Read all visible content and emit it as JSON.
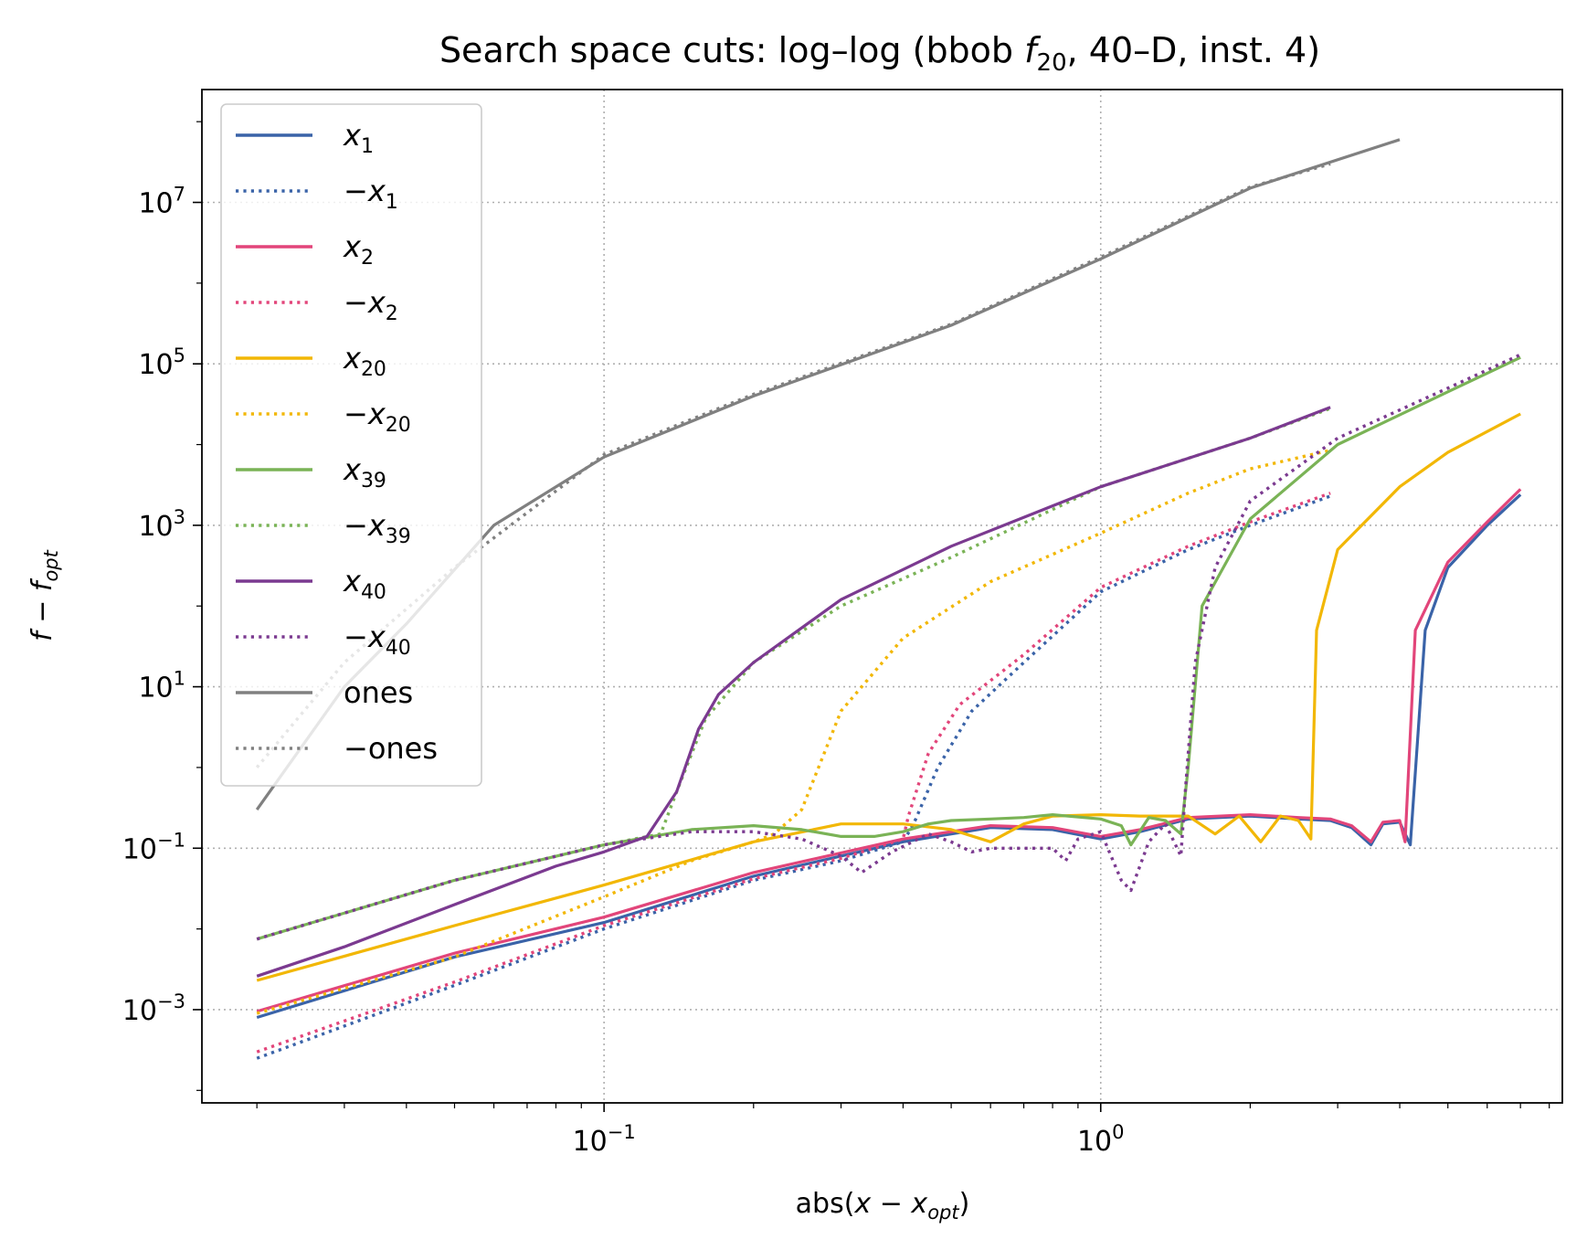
{
  "chart_data": {
    "type": "line",
    "title": "Search space cuts: log–log (bbob f20, 40–D, inst. 4)",
    "title_parts": {
      "pre": "Search space cuts: log–log (bbob ",
      "fn": "f",
      "fn_sub": "20",
      "post": ", 40–D, inst. 4)"
    },
    "xlabel": "abs(x − x_opt)",
    "xlabel_parts": {
      "pre": "abs(",
      "var": "x",
      "op": " − ",
      "var2": "x",
      "sub": "opt",
      "post": ")"
    },
    "ylabel": "f − f_opt",
    "ylabel_parts": {
      "var": "f",
      "op": " − ",
      "var2": "f",
      "sub": "opt"
    },
    "xscale": "log",
    "yscale": "log",
    "xlim": [
      0.0155,
      8.5
    ],
    "ylim": [
      7e-05,
      250000000
    ],
    "grid": true,
    "legend_position": "upper-left",
    "x_ticks": [
      {
        "value": 0.1,
        "base": "10",
        "exp": "−1"
      },
      {
        "value": 1,
        "base": "10",
        "exp": "0"
      }
    ],
    "y_ticks": [
      {
        "value": 0.001,
        "base": "10",
        "exp": "−3"
      },
      {
        "value": 0.1,
        "base": "10",
        "exp": "−1"
      },
      {
        "value": 10,
        "base": "10",
        "exp": "1"
      },
      {
        "value": 1000,
        "base": "10",
        "exp": "3"
      },
      {
        "value": 100000,
        "base": "10",
        "exp": "5"
      },
      {
        "value": 10000000,
        "base": "10",
        "exp": "7"
      }
    ],
    "series": [
      {
        "name": "x1",
        "label": {
          "pre": "",
          "var": "x",
          "sub": "1"
        },
        "color": "#3a63a8",
        "style": "solid",
        "points": [
          [
            0.02,
            0.0008
          ],
          [
            0.05,
            0.0045
          ],
          [
            0.1,
            0.012
          ],
          [
            0.2,
            0.045
          ],
          [
            0.4,
            0.12
          ],
          [
            0.6,
            0.18
          ],
          [
            0.8,
            0.17
          ],
          [
            1.0,
            0.13
          ],
          [
            1.2,
            0.16
          ],
          [
            1.5,
            0.23
          ],
          [
            2.0,
            0.25
          ],
          [
            2.5,
            0.23
          ],
          [
            2.9,
            0.22
          ],
          [
            3.2,
            0.18
          ],
          [
            3.5,
            0.11
          ],
          [
            3.7,
            0.2
          ],
          [
            4.0,
            0.21
          ],
          [
            4.2,
            0.11
          ],
          [
            4.5,
            50
          ],
          [
            5.0,
            300
          ],
          [
            6.0,
            1000
          ],
          [
            7.0,
            2400
          ]
        ]
      },
      {
        "name": "−x1",
        "label": {
          "pre": "−",
          "var": "x",
          "sub": "1"
        },
        "color": "#3a63a8",
        "style": "dotted",
        "points": [
          [
            0.02,
            0.00025
          ],
          [
            0.05,
            0.002
          ],
          [
            0.1,
            0.01
          ],
          [
            0.2,
            0.04
          ],
          [
            0.3,
            0.07
          ],
          [
            0.4,
            0.12
          ],
          [
            0.42,
            0.2
          ],
          [
            0.47,
            1
          ],
          [
            0.55,
            5
          ],
          [
            0.7,
            20
          ],
          [
            1.0,
            150
          ],
          [
            1.5,
            500
          ],
          [
            2.0,
            1000
          ],
          [
            2.9,
            2300
          ]
        ]
      },
      {
        "name": "x2",
        "label": {
          "pre": "",
          "var": "x",
          "sub": "2"
        },
        "color": "#e2457a",
        "style": "solid",
        "points": [
          [
            0.02,
            0.00095
          ],
          [
            0.05,
            0.005
          ],
          [
            0.1,
            0.014
          ],
          [
            0.2,
            0.05
          ],
          [
            0.4,
            0.13
          ],
          [
            0.6,
            0.19
          ],
          [
            0.8,
            0.18
          ],
          [
            1.0,
            0.14
          ],
          [
            1.2,
            0.17
          ],
          [
            1.5,
            0.24
          ],
          [
            2.0,
            0.26
          ],
          [
            2.5,
            0.24
          ],
          [
            2.9,
            0.23
          ],
          [
            3.2,
            0.19
          ],
          [
            3.5,
            0.12
          ],
          [
            3.7,
            0.21
          ],
          [
            4.0,
            0.22
          ],
          [
            4.1,
            0.12
          ],
          [
            4.3,
            50
          ],
          [
            5.0,
            350
          ],
          [
            6.0,
            1100
          ],
          [
            7.0,
            2800
          ]
        ]
      },
      {
        "name": "−x2",
        "label": {
          "pre": "−",
          "var": "x",
          "sub": "2"
        },
        "color": "#e2457a",
        "style": "dotted",
        "points": [
          [
            0.02,
            0.0003
          ],
          [
            0.05,
            0.0022
          ],
          [
            0.1,
            0.011
          ],
          [
            0.2,
            0.042
          ],
          [
            0.3,
            0.075
          ],
          [
            0.4,
            0.13
          ],
          [
            0.41,
            0.25
          ],
          [
            0.45,
            1.5
          ],
          [
            0.52,
            6
          ],
          [
            0.7,
            25
          ],
          [
            1.0,
            170
          ],
          [
            1.5,
            550
          ],
          [
            2.0,
            1100
          ],
          [
            2.9,
            2500
          ]
        ]
      },
      {
        "name": "x20",
        "label": {
          "pre": "",
          "var": "x",
          "sub": "20"
        },
        "color": "#f2b705",
        "style": "solid",
        "points": [
          [
            0.02,
            0.0023
          ],
          [
            0.05,
            0.011
          ],
          [
            0.1,
            0.035
          ],
          [
            0.2,
            0.12
          ],
          [
            0.3,
            0.2
          ],
          [
            0.4,
            0.2
          ],
          [
            0.5,
            0.17
          ],
          [
            0.6,
            0.12
          ],
          [
            0.7,
            0.2
          ],
          [
            0.8,
            0.25
          ],
          [
            1.0,
            0.26
          ],
          [
            1.2,
            0.25
          ],
          [
            1.5,
            0.25
          ],
          [
            1.7,
            0.15
          ],
          [
            1.9,
            0.25
          ],
          [
            2.1,
            0.12
          ],
          [
            2.3,
            0.25
          ],
          [
            2.5,
            0.22
          ],
          [
            2.65,
            0.13
          ],
          [
            2.72,
            50
          ],
          [
            3.0,
            500
          ],
          [
            4.0,
            3000
          ],
          [
            5.0,
            8000
          ],
          [
            7.0,
            24000
          ]
        ]
      },
      {
        "name": "−x20",
        "label": {
          "pre": "−",
          "var": "x",
          "sub": "20"
        },
        "color": "#f2b705",
        "style": "dotted",
        "points": [
          [
            0.02,
            0.0009
          ],
          [
            0.05,
            0.0045
          ],
          [
            0.1,
            0.025
          ],
          [
            0.15,
            0.07
          ],
          [
            0.2,
            0.12
          ],
          [
            0.22,
            0.15
          ],
          [
            0.25,
            0.3
          ],
          [
            0.3,
            5
          ],
          [
            0.4,
            40
          ],
          [
            0.6,
            200
          ],
          [
            1.0,
            800
          ],
          [
            1.5,
            2500
          ],
          [
            2.0,
            5000
          ],
          [
            2.9,
            8500
          ]
        ]
      },
      {
        "name": "x39",
        "label": {
          "pre": "",
          "var": "x",
          "sub": "39"
        },
        "color": "#7ab356",
        "style": "solid",
        "points": [
          [
            0.02,
            0.0075
          ],
          [
            0.05,
            0.04
          ],
          [
            0.1,
            0.11
          ],
          [
            0.15,
            0.17
          ],
          [
            0.2,
            0.19
          ],
          [
            0.25,
            0.17
          ],
          [
            0.3,
            0.14
          ],
          [
            0.35,
            0.14
          ],
          [
            0.4,
            0.16
          ],
          [
            0.45,
            0.2
          ],
          [
            0.5,
            0.22
          ],
          [
            0.6,
            0.23
          ],
          [
            0.7,
            0.24
          ],
          [
            0.8,
            0.26
          ],
          [
            1.0,
            0.23
          ],
          [
            1.1,
            0.19
          ],
          [
            1.15,
            0.11
          ],
          [
            1.25,
            0.24
          ],
          [
            1.35,
            0.22
          ],
          [
            1.45,
            0.15
          ],
          [
            1.5,
            1
          ],
          [
            1.6,
            100
          ],
          [
            2.0,
            1200
          ],
          [
            3.0,
            10000
          ],
          [
            5.0,
            45000
          ],
          [
            7.0,
            120000
          ]
        ]
      },
      {
        "name": "−x39",
        "label": {
          "pre": "−",
          "var": "x",
          "sub": "39"
        },
        "color": "#7ab356",
        "style": "dotted",
        "points": [
          [
            0.02,
            0.0075
          ],
          [
            0.05,
            0.04
          ],
          [
            0.1,
            0.11
          ],
          [
            0.13,
            0.15
          ],
          [
            0.14,
            0.5
          ],
          [
            0.16,
            4
          ],
          [
            0.2,
            20
          ],
          [
            0.3,
            100
          ],
          [
            0.5,
            400
          ],
          [
            1.0,
            3000
          ],
          [
            2.0,
            12000
          ],
          [
            2.9,
            28000
          ]
        ]
      },
      {
        "name": "x40",
        "label": {
          "pre": "",
          "var": "x",
          "sub": "40"
        },
        "color": "#7b3a90",
        "style": "solid",
        "points": [
          [
            0.02,
            0.0026
          ],
          [
            0.03,
            0.006
          ],
          [
            0.05,
            0.02
          ],
          [
            0.08,
            0.06
          ],
          [
            0.1,
            0.09
          ],
          [
            0.122,
            0.14
          ],
          [
            0.14,
            0.5
          ],
          [
            0.155,
            3
          ],
          [
            0.17,
            8
          ],
          [
            0.2,
            20
          ],
          [
            0.3,
            120
          ],
          [
            0.5,
            550
          ],
          [
            1.0,
            3000
          ],
          [
            2.0,
            12000
          ],
          [
            2.9,
            29000
          ]
        ]
      },
      {
        "name": "−x40",
        "label": {
          "pre": "−",
          "var": "x",
          "sub": "40"
        },
        "color": "#7b3a90",
        "style": "dotted",
        "points": [
          [
            0.02,
            0.0075
          ],
          [
            0.05,
            0.04
          ],
          [
            0.1,
            0.11
          ],
          [
            0.15,
            0.16
          ],
          [
            0.2,
            0.16
          ],
          [
            0.25,
            0.13
          ],
          [
            0.3,
            0.08
          ],
          [
            0.33,
            0.05
          ],
          [
            0.38,
            0.09
          ],
          [
            0.45,
            0.15
          ],
          [
            0.5,
            0.12
          ],
          [
            0.55,
            0.09
          ],
          [
            0.6,
            0.1
          ],
          [
            0.7,
            0.1
          ],
          [
            0.8,
            0.1
          ],
          [
            0.85,
            0.07
          ],
          [
            0.9,
            0.13
          ],
          [
            1.0,
            0.16
          ],
          [
            1.1,
            0.04
          ],
          [
            1.15,
            0.03
          ],
          [
            1.25,
            0.12
          ],
          [
            1.35,
            0.2
          ],
          [
            1.45,
            0.08
          ],
          [
            1.48,
            0.5
          ],
          [
            1.55,
            20
          ],
          [
            1.7,
            300
          ],
          [
            2.0,
            2000
          ],
          [
            3.0,
            12000
          ],
          [
            5.0,
            50000
          ],
          [
            7.0,
            130000
          ]
        ]
      },
      {
        "name": "ones",
        "label": {
          "pre": "ones",
          "var": "",
          "sub": ""
        },
        "color": "#808080",
        "style": "solid",
        "points": [
          [
            0.02,
            0.3
          ],
          [
            0.03,
            10
          ],
          [
            0.04,
            60
          ],
          [
            0.06,
            1000
          ],
          [
            0.1,
            7000
          ],
          [
            0.2,
            40000
          ],
          [
            0.5,
            300000
          ],
          [
            1.0,
            2000000
          ],
          [
            2.0,
            15000000
          ],
          [
            4.0,
            60000000
          ]
        ]
      },
      {
        "name": "−ones",
        "label": {
          "pre": "−ones",
          "var": "",
          "sub": ""
        },
        "color": "#808080",
        "style": "dotted",
        "points": [
          [
            0.02,
            1
          ],
          [
            0.03,
            20
          ],
          [
            0.05,
            300
          ],
          [
            0.1,
            7500
          ],
          [
            0.2,
            42000
          ],
          [
            0.5,
            310000
          ],
          [
            1.0,
            2100000
          ],
          [
            2.0,
            15500000
          ],
          [
            2.9,
            30000000
          ]
        ]
      }
    ]
  }
}
